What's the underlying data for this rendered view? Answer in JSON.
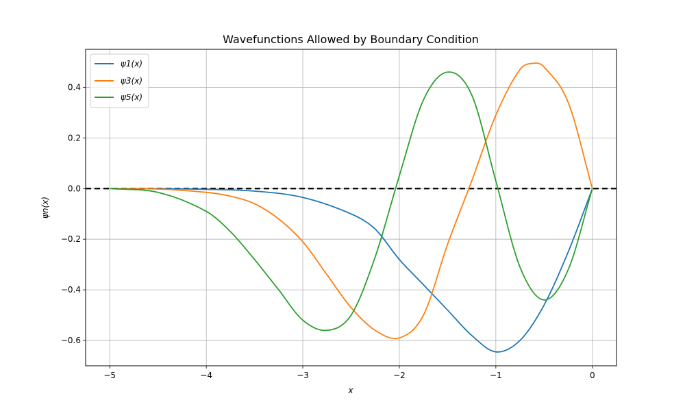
{
  "chart_data": {
    "type": "line",
    "title": "Wavefunctions Allowed by Boundary Condition",
    "xlabel": "x",
    "ylabel": "ψn(x)",
    "xlim": [
      -5.25,
      0.25
    ],
    "ylim": [
      -0.7,
      0.55
    ],
    "xticks": [
      -5,
      -4,
      -3,
      -2,
      -1,
      0
    ],
    "xtick_labels": [
      "−5",
      "−4",
      "−3",
      "−2",
      "−1",
      "0"
    ],
    "yticks": [
      -0.6,
      -0.4,
      -0.2,
      0.0,
      0.2,
      0.4
    ],
    "ytick_labels": [
      "−0.6",
      "−0.4",
      "−0.2",
      "0.0",
      "0.2",
      "0.4"
    ],
    "grid": true,
    "legend_position": "upper-left",
    "reference_line": {
      "y": 0,
      "style": "dashed",
      "color": "#000000"
    },
    "series": [
      {
        "name": "ψ1(x)",
        "color": "#1f77b4",
        "x": [
          -5,
          -4.5,
          -4,
          -3.5,
          -3,
          -2.5,
          -2.25,
          -2,
          -1.75,
          -1.5,
          -1.25,
          -1,
          -0.75,
          -0.5,
          -0.25,
          0
        ],
        "y": [
          0,
          -0.0002,
          -0.003,
          -0.01,
          -0.035,
          -0.1,
          -0.16,
          -0.28,
          -0.38,
          -0.48,
          -0.58,
          -0.645,
          -0.6,
          -0.46,
          -0.25,
          0
        ]
      },
      {
        "name": "ψ3(x)",
        "color": "#ff7f0e",
        "x": [
          -5,
          -4.5,
          -4,
          -3.75,
          -3.5,
          -3.25,
          -3,
          -2.75,
          -2.5,
          -2.25,
          -2,
          -1.75,
          -1.5,
          -1.25,
          -1,
          -0.75,
          -0.6,
          -0.5,
          -0.25,
          0
        ],
        "y": [
          0,
          -0.002,
          -0.015,
          -0.03,
          -0.06,
          -0.12,
          -0.21,
          -0.34,
          -0.47,
          -0.56,
          -0.59,
          -0.5,
          -0.22,
          0.03,
          0.29,
          0.47,
          0.495,
          0.48,
          0.34,
          0
        ]
      },
      {
        "name": "ψ5(x)",
        "color": "#2ca02c",
        "x": [
          -5,
          -4.5,
          -4,
          -3.75,
          -3.5,
          -3.25,
          -3,
          -2.75,
          -2.5,
          -2.25,
          -2,
          -1.75,
          -1.5,
          -1.25,
          -1,
          -0.75,
          -0.5,
          -0.25,
          0
        ],
        "y": [
          0,
          -0.015,
          -0.09,
          -0.17,
          -0.28,
          -0.4,
          -0.52,
          -0.56,
          -0.5,
          -0.27,
          0.05,
          0.35,
          0.46,
          0.37,
          0.03,
          -0.31,
          -0.44,
          -0.32,
          0
        ]
      }
    ]
  }
}
